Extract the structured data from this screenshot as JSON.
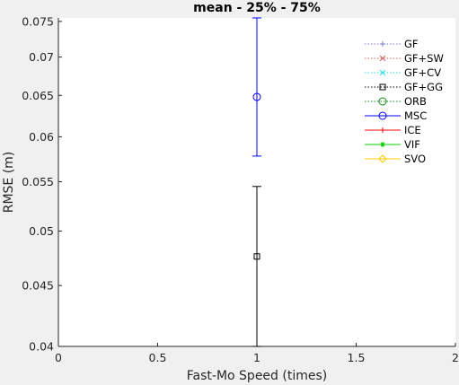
{
  "chart_data": {
    "type": "scatter",
    "title": "mean - 25% - 75%",
    "xlabel": "Fast-Mo Speed (times)",
    "ylabel": "RMSE (m)",
    "xlim": [
      0,
      2
    ],
    "ylim": [
      0.04,
      0.0755
    ],
    "y_scale": "log",
    "x_ticks": [
      0,
      0.5,
      1,
      1.5,
      2
    ],
    "x_tick_labels": [
      "0",
      "0.5",
      "1",
      "1.5",
      "2"
    ],
    "y_ticks": [
      0.04,
      0.045,
      0.05,
      0.055,
      0.06,
      0.065,
      0.07,
      0.075
    ],
    "y_tick_labels": [
      "0.04",
      "0.045",
      "0.05",
      "0.055",
      "0.06",
      "0.065",
      "0.07",
      "0.075"
    ],
    "grid": false,
    "legend_position": "top-right",
    "series": [
      {
        "name": "GF",
        "color": "#7777cc",
        "line": "dotted",
        "marker": "plus",
        "points": []
      },
      {
        "name": "GF+SW",
        "color": "#cc6666",
        "line": "dotted",
        "marker": "x",
        "points": []
      },
      {
        "name": "GF+CV",
        "color": "#33dddd",
        "line": "dotted",
        "marker": "x",
        "points": []
      },
      {
        "name": "GF+GG",
        "color": "#000000",
        "line": "dotted",
        "marker": "square",
        "points": [
          {
            "x": 1,
            "y": 0.0476,
            "lower": 0.04,
            "upper": 0.0545
          }
        ]
      },
      {
        "name": "ORB",
        "color": "#118811",
        "line": "dotted",
        "marker": "circle",
        "points": []
      },
      {
        "name": "MSC",
        "color": "#0000ff",
        "line": "solid",
        "marker": "circle",
        "points": [
          {
            "x": 1,
            "y": 0.0648,
            "lower": 0.0578,
            "upper": 0.0755
          }
        ]
      },
      {
        "name": "ICE",
        "color": "#ff0000",
        "line": "solid",
        "marker": "plus",
        "points": []
      },
      {
        "name": "VIF",
        "color": "#00cc00",
        "line": "solid",
        "marker": "asterisk",
        "points": []
      },
      {
        "name": "SVO",
        "color": "#ffcc00",
        "line": "solid",
        "marker": "diamond",
        "points": []
      }
    ]
  }
}
